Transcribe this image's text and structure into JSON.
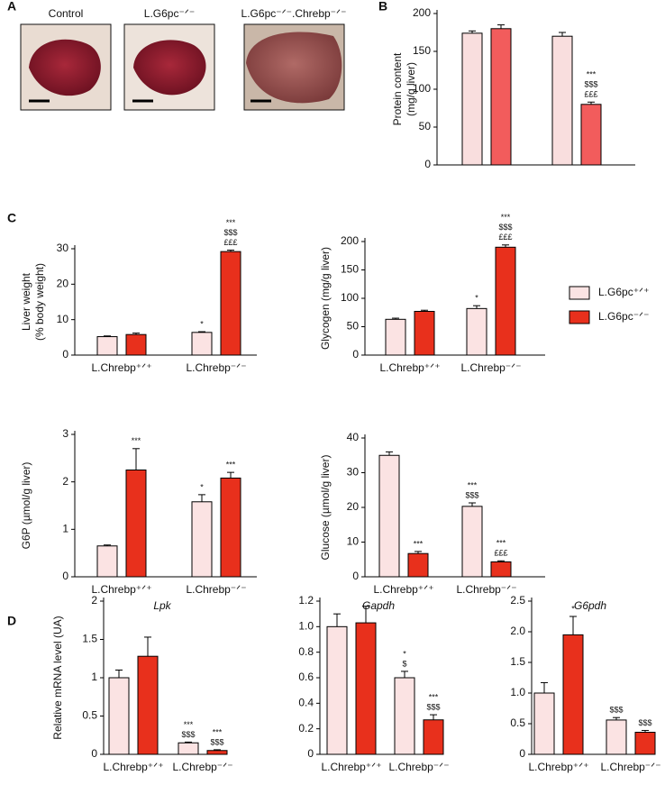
{
  "panels": {
    "letters": [
      "A",
      "B",
      "C",
      "D"
    ],
    "photo_labels": [
      "Control",
      "L.G6pc⁻ᐟ⁻",
      "L.G6pc⁻ᐟ⁻.Chrebp⁻ᐟ⁻"
    ]
  },
  "chart_data": [
    {
      "type": "bar",
      "ylabel": [
        "Protein content",
        "(mg/g liver)"
      ],
      "categories": [
        null,
        null
      ],
      "ylim": [
        0,
        200
      ],
      "yticks": [
        0,
        50,
        100,
        150,
        200
      ],
      "series": [
        {
          "color": "#f9dede",
          "values": [
            174,
            170
          ],
          "errors": [
            3,
            5
          ],
          "annotations": [
            null,
            null
          ]
        },
        {
          "color": "#f25c5c",
          "values": [
            180,
            80
          ],
          "errors": [
            5,
            3
          ],
          "annotations": [
            null,
            [
              "***",
              "$$$",
              "£££"
            ]
          ]
        }
      ]
    },
    {
      "type": "bar",
      "ylabel": [
        "Liver weight",
        "(% body weight)"
      ],
      "categories": [
        "L.Chrebp⁺ᐟ⁺",
        "L.Chrebp⁻ᐟ⁻"
      ],
      "ylim": [
        0,
        30
      ],
      "yticks": [
        0,
        10,
        20,
        30
      ],
      "series": [
        {
          "color": "#fbe3e3",
          "values": [
            5.2,
            6.4
          ],
          "errors": [
            0.2,
            0.2
          ],
          "annotations": [
            null,
            [
              "*"
            ]
          ]
        },
        {
          "color": "#e8301c",
          "values": [
            5.8,
            29.2
          ],
          "errors": [
            0.4,
            0.4
          ],
          "annotations": [
            null,
            [
              "***",
              "$$$",
              "£££"
            ]
          ]
        }
      ]
    },
    {
      "type": "bar",
      "ylabel": [
        "Glycogen (mg/g liver)"
      ],
      "categories": [
        "L.Chrebp⁺ᐟ⁺",
        "L.Chrebp⁻ᐟ⁻"
      ],
      "ylim": [
        0,
        200
      ],
      "yticks": [
        0,
        50,
        100,
        150,
        200
      ],
      "series": [
        {
          "name": "L.G6pc⁺ᐟ⁺",
          "color": "#fbe3e3",
          "values": [
            63,
            82
          ],
          "errors": [
            2,
            5
          ],
          "annotations": [
            null,
            [
              "*"
            ]
          ]
        },
        {
          "name": "L.G6pc⁻ᐟ⁻",
          "color": "#e8301c",
          "values": [
            77,
            190
          ],
          "errors": [
            2,
            4
          ],
          "annotations": [
            null,
            [
              "***",
              "$$$",
              "£££"
            ]
          ]
        }
      ]
    },
    {
      "type": "bar",
      "ylabel": [
        "G6P (µmol/g liver)"
      ],
      "categories": [
        "L.Chrebp⁺ᐟ⁺",
        "L.Chrebp⁻ᐟ⁻"
      ],
      "ylim": [
        0,
        3
      ],
      "yticks": [
        0,
        1,
        2,
        3
      ],
      "series": [
        {
          "color": "#fbe3e3",
          "values": [
            0.65,
            1.58
          ],
          "errors": [
            0.02,
            0.15
          ],
          "annotations": [
            null,
            [
              "*"
            ]
          ]
        },
        {
          "color": "#e8301c",
          "values": [
            2.25,
            2.08
          ],
          "errors": [
            0.45,
            0.12
          ],
          "annotations": [
            [
              "***"
            ],
            [
              "***"
            ]
          ]
        }
      ]
    },
    {
      "type": "bar",
      "ylabel": [
        "Glucose (µmol/g liver)"
      ],
      "categories": [
        "L.Chrebp⁺ᐟ⁺",
        "L.Chrebp⁻ᐟ⁻"
      ],
      "ylim": [
        0,
        40
      ],
      "yticks": [
        0,
        10,
        20,
        30,
        40
      ],
      "series": [
        {
          "color": "#fbe3e3",
          "values": [
            35,
            20.3
          ],
          "errors": [
            1,
            1
          ],
          "annotations": [
            null,
            [
              "***",
              "$$$"
            ]
          ]
        },
        {
          "color": "#e8301c",
          "values": [
            6.7,
            4.3
          ],
          "errors": [
            0.6,
            0.3
          ],
          "annotations": [
            [
              "***"
            ],
            [
              "***",
              "£££"
            ]
          ]
        }
      ]
    },
    {
      "type": "bar",
      "title": "Lpk",
      "ylabel": [
        "Relative mRNA level (UA)"
      ],
      "categories": [
        "L.Chrebp⁺ᐟ⁺",
        "L.Chrebp⁻ᐟ⁻"
      ],
      "ylim": [
        0,
        2
      ],
      "yticks": [
        0,
        0.5,
        1,
        1.5,
        2
      ],
      "series": [
        {
          "color": "#fbe3e3",
          "values": [
            1.0,
            0.15
          ],
          "errors": [
            0.1,
            0.01
          ],
          "annotations": [
            null,
            [
              "***",
              "$$$"
            ]
          ]
        },
        {
          "color": "#e8301c",
          "values": [
            1.28,
            0.05
          ],
          "errors": [
            0.25,
            0.01
          ],
          "annotations": [
            null,
            [
              "***",
              "$$$"
            ]
          ]
        }
      ]
    },
    {
      "type": "bar",
      "title": "Gapdh",
      "categories": [
        "L.Chrebp⁺ᐟ⁺",
        "L.Chrebp⁻ᐟ⁻"
      ],
      "ylim": [
        0,
        1.2
      ],
      "yticks": [
        0,
        0.2,
        0.4,
        0.6,
        0.8,
        {
          "value": 1,
          "label": "1.0"
        },
        1.2
      ],
      "series": [
        {
          "color": "#fbe3e3",
          "values": [
            1.0,
            0.6
          ],
          "errors": [
            0.1,
            0.05
          ],
          "annotations": [
            null,
            [
              "*",
              "$"
            ]
          ]
        },
        {
          "color": "#e8301c",
          "values": [
            1.03,
            0.27
          ],
          "errors": [
            0.13,
            0.04
          ],
          "annotations": [
            null,
            [
              "***",
              "$$$"
            ]
          ]
        }
      ]
    },
    {
      "type": "bar",
      "title": "G6pdh",
      "categories": [
        "L.Chrebp⁺ᐟ⁺",
        "L.Chrebp⁻ᐟ⁻"
      ],
      "ylim": [
        0,
        2.5
      ],
      "yticks": [
        0,
        0.5,
        {
          "value": 1,
          "label": "1.0"
        },
        1.5,
        {
          "value": 2,
          "label": "2.0"
        },
        2.5
      ],
      "series": [
        {
          "color": "#fbe3e3",
          "values": [
            1.0,
            0.56
          ],
          "errors": [
            0.17,
            0.04
          ],
          "annotations": [
            null,
            [
              "$$$"
            ]
          ]
        },
        {
          "color": "#e8301c",
          "values": [
            1.95,
            0.36
          ],
          "errors": [
            0.3,
            0.03
          ],
          "annotations": [
            [
              "*"
            ],
            [
              "$$$"
            ]
          ]
        }
      ]
    }
  ]
}
